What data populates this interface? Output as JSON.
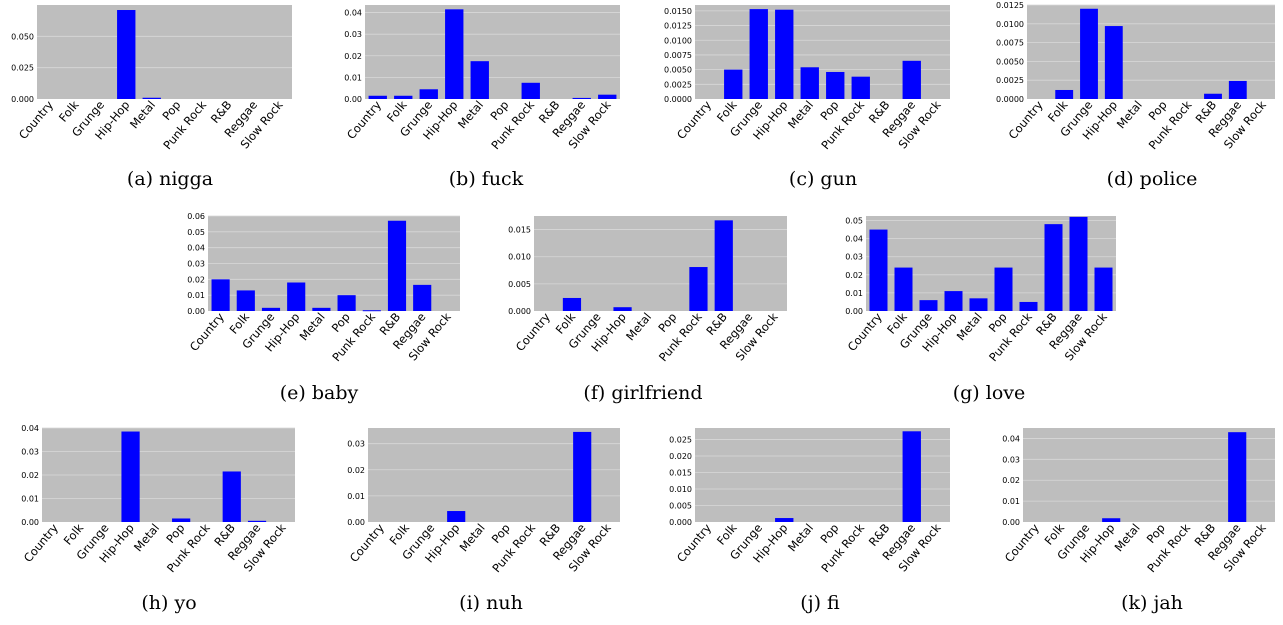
{
  "figure": {
    "colors": {
      "bar": "#0000ff",
      "plot_background": "#bebebe",
      "grid": "#d8d8d8"
    },
    "categories": [
      "Country",
      "Folk",
      "Grunge",
      "Hip-Hop",
      "Metal",
      "Pop",
      "Punk Rock",
      "R&B",
      "Reggae",
      "Slow Rock"
    ]
  },
  "chart_data": [
    {
      "type": "bar",
      "caption": "(a) nigga",
      "categories": [
        "Country",
        "Folk",
        "Grunge",
        "Hip-Hop",
        "Metal",
        "Pop",
        "Punk Rock",
        "R&B",
        "Reggae",
        "Slow Rock"
      ],
      "values": [
        0,
        0,
        0,
        0.071,
        0.001,
        0,
        0,
        0,
        0,
        0
      ],
      "ylim": [
        0,
        0.075
      ],
      "yticks": [
        "0.000",
        "0.025",
        "0.050"
      ],
      "grid": true
    },
    {
      "type": "bar",
      "caption": "(b) fuck",
      "categories": [
        "Country",
        "Folk",
        "Grunge",
        "Hip-Hop",
        "Metal",
        "Pop",
        "Punk Rock",
        "R&B",
        "Reggae",
        "Slow Rock"
      ],
      "values": [
        0.0015,
        0.0015,
        0.0045,
        0.0415,
        0.0175,
        0,
        0.0075,
        0,
        0.0005,
        0.002
      ],
      "ylim": [
        0,
        0.0435
      ],
      "yticks": [
        "0.00",
        "0.01",
        "0.02",
        "0.03",
        "0.04"
      ],
      "grid": true
    },
    {
      "type": "bar",
      "caption": "(c) gun",
      "categories": [
        "Country",
        "Folk",
        "Grunge",
        "Hip-Hop",
        "Metal",
        "Pop",
        "Punk Rock",
        "R&B",
        "Reggae",
        "Slow Rock"
      ],
      "values": [
        0,
        0.005,
        0.0153,
        0.0152,
        0.0054,
        0.0046,
        0.0038,
        0,
        0.0065,
        0
      ],
      "ylim": [
        0,
        0.016
      ],
      "yticks": [
        "0.0000",
        "0.0025",
        "0.0050",
        "0.0075",
        "0.0100",
        "0.0125",
        "0.0150"
      ],
      "grid": true
    },
    {
      "type": "bar",
      "caption": "(d) police",
      "categories": [
        "Country",
        "Folk",
        "Grunge",
        "Hip-Hop",
        "Metal",
        "Pop",
        "Punk Rock",
        "R&B",
        "Reggae",
        "Slow Rock"
      ],
      "values": [
        0,
        0.0012,
        0.012,
        0.0097,
        0,
        0,
        0,
        0.0007,
        0.0024,
        0
      ],
      "ylim": [
        0,
        0.0125
      ],
      "yticks": [
        "0.0000",
        "0.0025",
        "0.0050",
        "0.0075",
        "0.0100",
        "0.0125"
      ],
      "grid": true
    },
    {
      "type": "bar",
      "caption": "(e) baby",
      "categories": [
        "Country",
        "Folk",
        "Grunge",
        "Hip-Hop",
        "Metal",
        "Pop",
        "Punk Rock",
        "R&B",
        "Reggae",
        "Slow Rock"
      ],
      "values": [
        0.02,
        0.013,
        0.002,
        0.018,
        0.002,
        0.01,
        0.0005,
        0.057,
        0.0165,
        0
      ],
      "ylim": [
        0,
        0.06
      ],
      "yticks": [
        "0.00",
        "0.01",
        "0.02",
        "0.03",
        "0.04",
        "0.05",
        "0.06"
      ],
      "grid": true
    },
    {
      "type": "bar",
      "caption": "(f) girlfriend",
      "categories": [
        "Country",
        "Folk",
        "Grunge",
        "Hip-Hop",
        "Metal",
        "Pop",
        "Punk Rock",
        "R&B",
        "Reggae",
        "Slow Rock"
      ],
      "values": [
        0,
        0.0024,
        0,
        0.0007,
        0,
        0,
        0.0081,
        0.0167,
        0,
        0
      ],
      "ylim": [
        0,
        0.0175
      ],
      "yticks": [
        "0.000",
        "0.005",
        "0.010",
        "0.015"
      ],
      "grid": true
    },
    {
      "type": "bar",
      "caption": "(g) love",
      "categories": [
        "Country",
        "Folk",
        "Grunge",
        "Hip-Hop",
        "Metal",
        "Pop",
        "Punk Rock",
        "R&B",
        "Reggae",
        "Slow Rock"
      ],
      "values": [
        0.045,
        0.024,
        0.006,
        0.011,
        0.007,
        0.024,
        0.005,
        0.048,
        0.052,
        0.024
      ],
      "ylim": [
        0,
        0.0525
      ],
      "yticks": [
        "0.00",
        "0.01",
        "0.02",
        "0.03",
        "0.04",
        "0.05"
      ],
      "grid": true
    },
    {
      "type": "bar",
      "caption": "(h) yo",
      "categories": [
        "Country",
        "Folk",
        "Grunge",
        "Hip-Hop",
        "Metal",
        "Pop",
        "Punk Rock",
        "R&B",
        "Reggae",
        "Slow Rock"
      ],
      "values": [
        0,
        0,
        0,
        0.0385,
        0,
        0.0015,
        0,
        0.0215,
        0.0005,
        0
      ],
      "ylim": [
        0,
        0.04
      ],
      "yticks": [
        "0.00",
        "0.01",
        "0.02",
        "0.03",
        "0.04"
      ],
      "grid": true
    },
    {
      "type": "bar",
      "caption": "(i) nuh",
      "categories": [
        "Country",
        "Folk",
        "Grunge",
        "Hip-Hop",
        "Metal",
        "Pop",
        "Punk Rock",
        "R&B",
        "Reggae",
        "Slow Rock"
      ],
      "values": [
        0,
        0,
        0,
        0.0042,
        0,
        0,
        0,
        0,
        0.0345,
        0
      ],
      "ylim": [
        0,
        0.036
      ],
      "yticks": [
        "0.00",
        "0.01",
        "0.02",
        "0.03"
      ],
      "grid": true
    },
    {
      "type": "bar",
      "caption": "(j) fi",
      "categories": [
        "Country",
        "Folk",
        "Grunge",
        "Hip-Hop",
        "Metal",
        "Pop",
        "Punk Rock",
        "R&B",
        "Reggae",
        "Slow Rock"
      ],
      "values": [
        0,
        0,
        0,
        0.0012,
        0,
        0,
        0,
        0,
        0.0275,
        0
      ],
      "ylim": [
        0,
        0.0285
      ],
      "yticks": [
        "0.000",
        "0.005",
        "0.010",
        "0.015",
        "0.020",
        "0.025"
      ],
      "grid": true
    },
    {
      "type": "bar",
      "caption": "(k) jah",
      "categories": [
        "Country",
        "Folk",
        "Grunge",
        "Hip-Hop",
        "Metal",
        "Pop",
        "Punk Rock",
        "R&B",
        "Reggae",
        "Slow Rock"
      ],
      "values": [
        0,
        0,
        0,
        0.0018,
        0,
        0,
        0,
        0,
        0.043,
        0
      ],
      "ylim": [
        0,
        0.045
      ],
      "yticks": [
        "0.00",
        "0.01",
        "0.02",
        "0.03",
        "0.04"
      ],
      "grid": true
    }
  ]
}
